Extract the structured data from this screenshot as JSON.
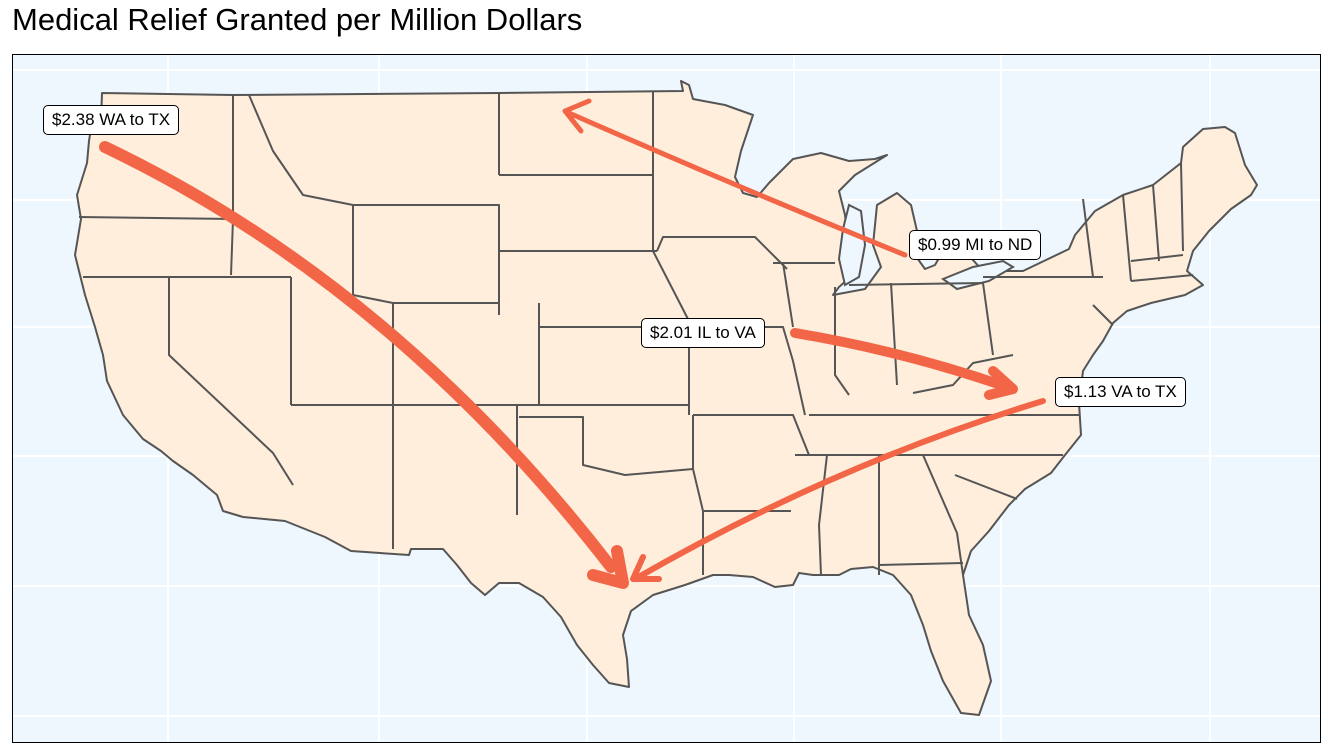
{
  "title": "Medical Relief Granted per Million Dollars",
  "colors": {
    "arrow": "#f26547",
    "land": "#feeedb",
    "water": "#eef6fe",
    "border": "#555555"
  },
  "flows": [
    {
      "label": "$2.38 WA to TX",
      "from": "WA",
      "to": "TX",
      "value": 2.38
    },
    {
      "label": "$0.99 MI to ND",
      "from": "MI",
      "to": "ND",
      "value": 0.99
    },
    {
      "label": "$2.01 IL to VA",
      "from": "IL",
      "to": "VA",
      "value": 2.01
    },
    {
      "label": "$1.13 VA to TX",
      "from": "VA",
      "to": "TX",
      "value": 1.13
    }
  ]
}
